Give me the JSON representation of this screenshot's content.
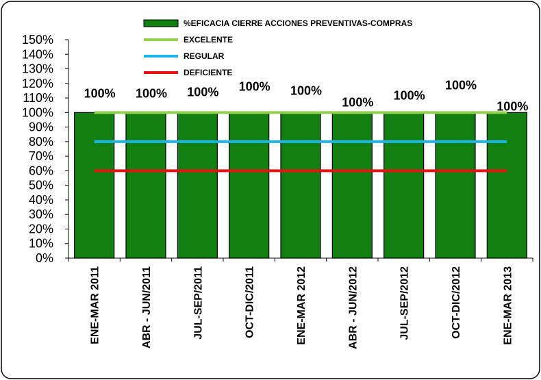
{
  "chart_data": {
    "type": "bar",
    "categories": [
      "ENE-MAR 2011",
      "ABR - JUN/2011",
      "JUL-SEP/2011",
      "OCT-DIC/2011",
      "ENE-MAR 2012",
      "ABR - JUN/2012",
      "JUL-SEP/2012",
      "OCT-DIC/2012",
      "ENE-MAR 2013"
    ],
    "series": [
      {
        "name": "%EFICACIA CIERRE ACCIONES PREVENTIVAS-COMPRAS",
        "values": [
          1.0,
          1.0,
          1.0,
          1.0,
          1.0,
          1.0,
          1.0,
          1.0,
          1.0
        ],
        "color": "#118011",
        "kind": "bar"
      },
      {
        "name": "EXCELENTE",
        "values": [
          1.0,
          1.0,
          1.0,
          1.0,
          1.0,
          1.0,
          1.0,
          1.0,
          1.0
        ],
        "color": "#92D050",
        "kind": "line"
      },
      {
        "name": "REGULAR",
        "values": [
          0.8,
          0.8,
          0.8,
          0.8,
          0.8,
          0.8,
          0.8,
          0.8,
          0.8
        ],
        "color": "#1EB4E8",
        "kind": "line"
      },
      {
        "name": "DEFICIENTE",
        "values": [
          0.6,
          0.6,
          0.6,
          0.6,
          0.6,
          0.6,
          0.6,
          0.6,
          0.6
        ],
        "color": "#E81010",
        "kind": "line"
      }
    ],
    "data_labels": [
      "100%",
      "100%",
      "100%",
      "100%",
      "100%",
      "100%",
      "100%",
      "100%",
      "100%"
    ],
    "ylim": [
      0,
      1.5
    ],
    "yticks": [
      0,
      0.1,
      0.2,
      0.3,
      0.4,
      0.5,
      0.6,
      0.7,
      0.8,
      0.9,
      1.0,
      1.1,
      1.2,
      1.3,
      1.4,
      1.5
    ],
    "ytick_labels": [
      "0%",
      "10%",
      "20%",
      "30%",
      "40%",
      "50%",
      "60%",
      "70%",
      "80%",
      "90%",
      "100%",
      "110%",
      "120%",
      "130%",
      "140%",
      "150%"
    ],
    "legend_position": "top",
    "grid": false,
    "xlabel": "",
    "ylabel": ""
  }
}
